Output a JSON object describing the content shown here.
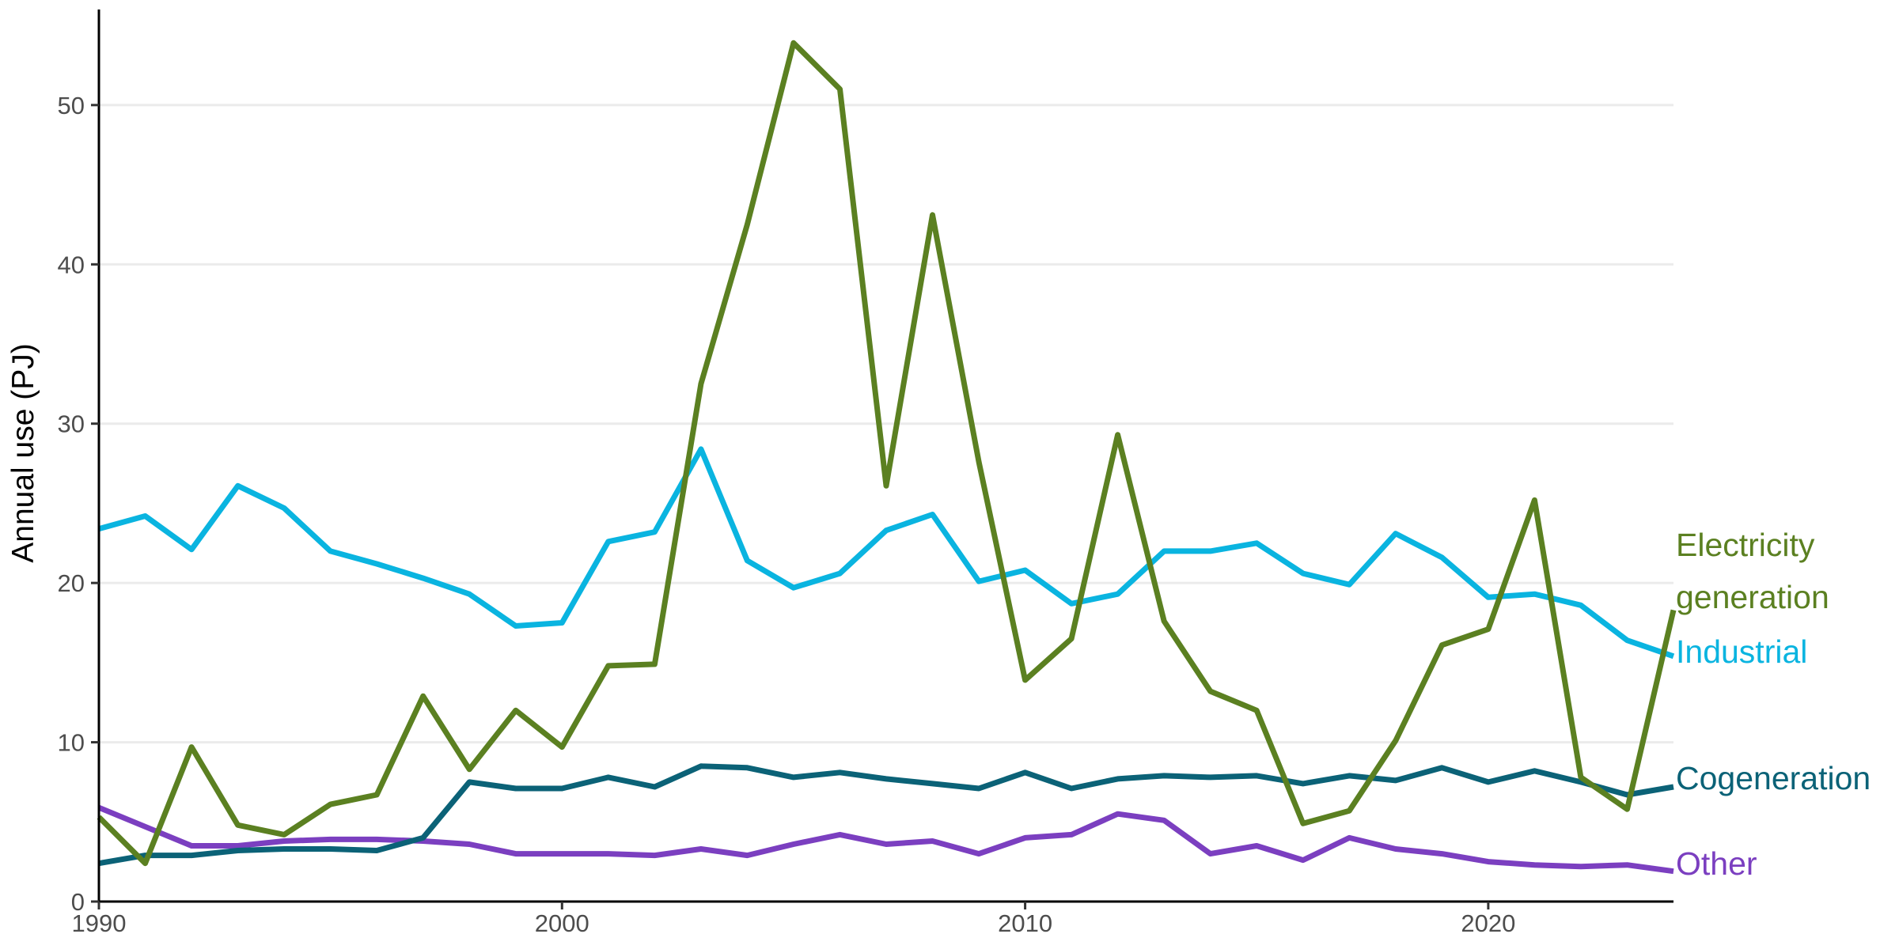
{
  "chart_data": {
    "type": "line",
    "title": "",
    "xlabel": "",
    "ylabel": "Annual use (PJ)",
    "xlim": [
      1990,
      2024
    ],
    "ylim": [
      0,
      56
    ],
    "x_ticks": [
      1990,
      2000,
      2010,
      2020
    ],
    "y_ticks": [
      0,
      10,
      20,
      30,
      40,
      50
    ],
    "grid": "horizontal",
    "legend": "direct labels at right end of lines",
    "x": [
      1990,
      1991,
      1992,
      1993,
      1994,
      1995,
      1996,
      1997,
      1998,
      1999,
      2000,
      2001,
      2002,
      2003,
      2004,
      2005,
      2006,
      2007,
      2008,
      2009,
      2010,
      2011,
      2012,
      2013,
      2014,
      2015,
      2016,
      2017,
      2018,
      2019,
      2020,
      2021,
      2022,
      2023,
      2024
    ],
    "series": [
      {
        "name": "Industrial",
        "label_lines": [
          "Industrial"
        ],
        "color": "#0ab4e0",
        "values": [
          23.4,
          24.2,
          22.1,
          26.1,
          24.7,
          22.0,
          21.2,
          20.3,
          19.3,
          17.3,
          17.5,
          22.6,
          23.2,
          28.4,
          21.4,
          19.7,
          20.6,
          23.3,
          24.3,
          20.1,
          20.8,
          18.7,
          19.3,
          22.0,
          22.0,
          22.5,
          20.6,
          19.9,
          23.1,
          21.6,
          19.1,
          19.3,
          18.6,
          16.4,
          15.4
        ]
      },
      {
        "name": "Electricity generation",
        "label_lines": [
          "Electricity",
          "generation"
        ],
        "color": "#5b8021",
        "values": [
          5.3,
          2.4,
          9.7,
          4.8,
          4.2,
          6.1,
          6.7,
          12.9,
          8.3,
          12.0,
          9.7,
          14.8,
          14.9,
          32.5,
          42.5,
          53.9,
          51.0,
          26.1,
          43.1,
          27.6,
          13.9,
          16.5,
          29.3,
          17.6,
          13.2,
          12.0,
          4.9,
          5.7,
          10.1,
          16.1,
          17.1,
          25.2,
          7.8,
          5.8,
          18.3
        ]
      },
      {
        "name": "Cogeneration",
        "label_lines": [
          "Cogeneration"
        ],
        "color": "#0b6277",
        "values": [
          2.4,
          2.9,
          2.9,
          3.2,
          3.3,
          3.3,
          3.2,
          4.0,
          7.5,
          7.1,
          7.1,
          7.8,
          7.2,
          8.5,
          8.4,
          7.8,
          8.1,
          7.7,
          7.4,
          7.1,
          8.1,
          7.1,
          7.7,
          7.9,
          7.8,
          7.9,
          7.4,
          7.9,
          7.6,
          8.4,
          7.5,
          8.2,
          7.5,
          6.7,
          7.2
        ]
      },
      {
        "name": "Other",
        "label_lines": [
          "Other"
        ],
        "color": "#7b3fc0",
        "values": [
          5.9,
          4.7,
          3.5,
          3.5,
          3.8,
          3.9,
          3.9,
          3.8,
          3.6,
          3.0,
          3.0,
          3.0,
          2.9,
          3.3,
          2.9,
          3.6,
          4.2,
          3.6,
          3.8,
          3.0,
          4.0,
          4.2,
          5.5,
          5.1,
          3.0,
          3.5,
          2.6,
          4.0,
          3.3,
          3.0,
          2.5,
          2.3,
          2.2,
          2.3,
          1.9
        ]
      }
    ]
  }
}
